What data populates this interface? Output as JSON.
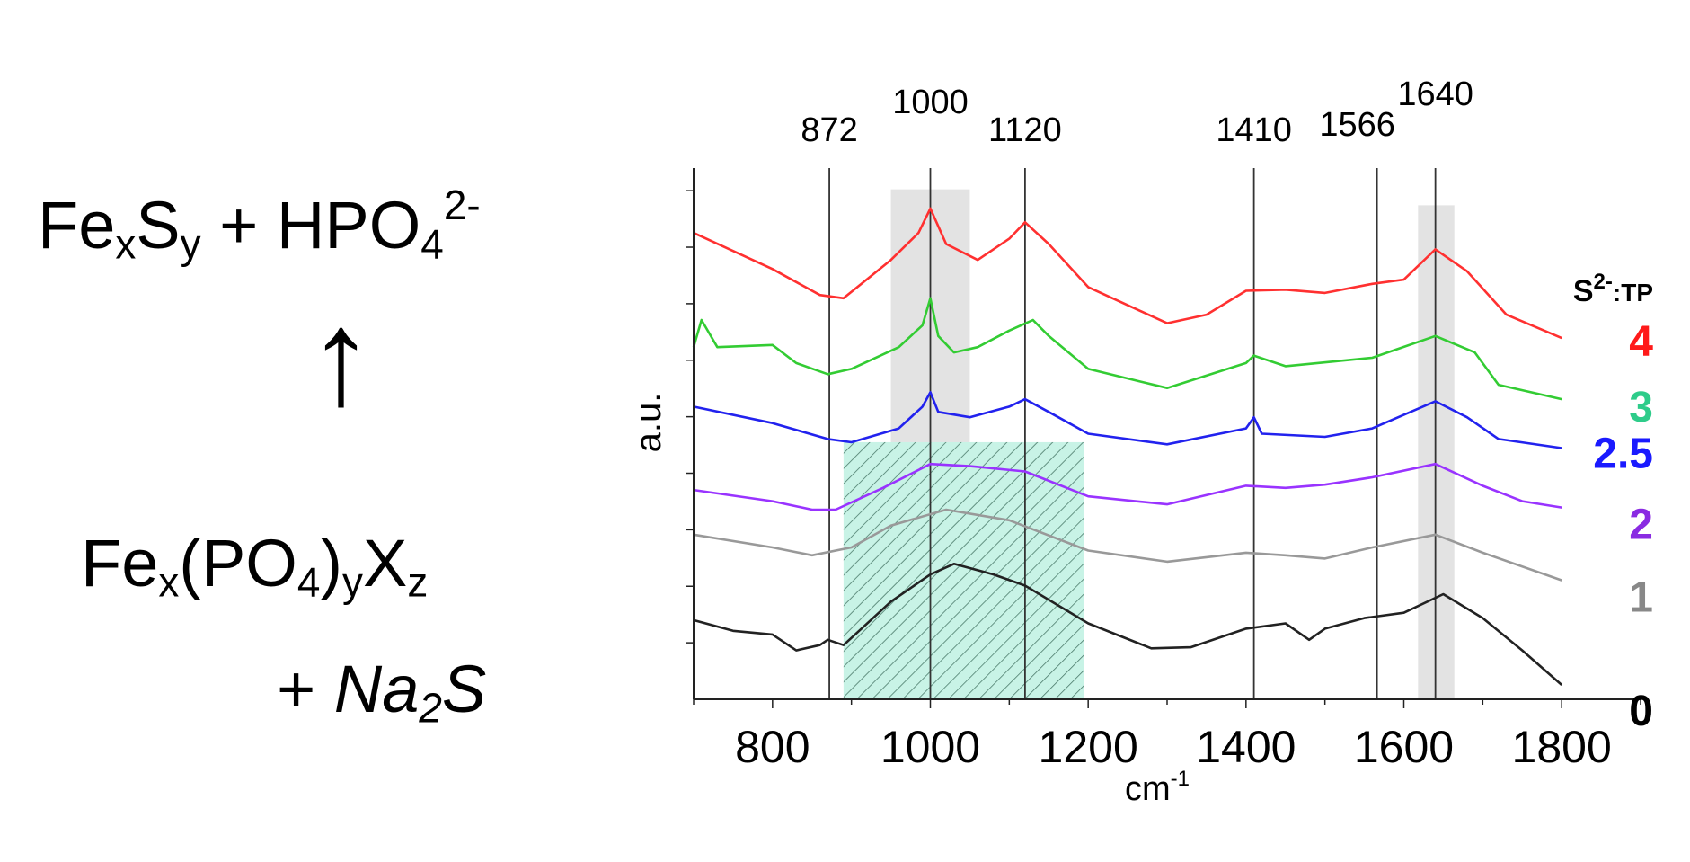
{
  "scheme": {
    "product": {
      "a": "Fe",
      "a_sub": "x",
      "b": "S",
      "b_sub": "y",
      "plus": " + HPO",
      "p_sub": "4",
      "p_sup": "2-"
    },
    "arrow": "↑",
    "reactant": {
      "a": "Fe",
      "a_sub": "x",
      "b": "(PO",
      "b_sub": "4",
      "c": ")",
      "c_sub": "y",
      "d": "X",
      "d_sub": "z"
    },
    "reagent": {
      "plus": "+ ",
      "a": "Na",
      "a_sub": "2",
      "b": "S"
    }
  },
  "chart_data": {
    "type": "line",
    "xlabel": "cm",
    "xlabel_sup": "-1",
    "ylabel": "a.u.",
    "xlim": [
      700,
      1900
    ],
    "ylim": [
      0,
      10
    ],
    "xticks": [
      "800",
      "1000",
      "1200",
      "1400",
      "1600",
      "1800"
    ],
    "grid": false,
    "legend_title": {
      "main": "S",
      "sup": "2-",
      "rest": ":TP"
    },
    "legend_placement": "right",
    "reference_lines": [
      {
        "x": 872,
        "label": "872"
      },
      {
        "x": 1000,
        "label": "1000"
      },
      {
        "x": 1120,
        "label": "1120"
      },
      {
        "x": 1410,
        "label": "1410"
      },
      {
        "x": 1566,
        "label": "1566"
      },
      {
        "x": 1640,
        "label": "1640"
      }
    ],
    "shaded_regions": [
      {
        "x": [
          950,
          1050
        ],
        "y": [
          4.84,
          9.6
        ],
        "style": "gray"
      },
      {
        "x": [
          1618,
          1664
        ],
        "y": [
          0,
          9.3
        ],
        "style": "gray"
      },
      {
        "x": [
          890,
          1195
        ],
        "y": [
          0,
          4.84
        ],
        "style": "teal-hatched"
      }
    ],
    "series": [
      {
        "name": "4",
        "color": "#ff3030",
        "label_color": "#ff1a1a",
        "x": [
          700,
          800,
          860,
          890,
          950,
          985,
          1000,
          1020,
          1060,
          1100,
          1120,
          1150,
          1200,
          1300,
          1350,
          1400,
          1450,
          1500,
          1560,
          1600,
          1640,
          1680,
          1730,
          1800
        ],
        "y": [
          8.78,
          8.1,
          7.61,
          7.55,
          8.27,
          8.78,
          9.24,
          8.57,
          8.27,
          8.67,
          8.98,
          8.57,
          7.76,
          7.08,
          7.24,
          7.69,
          7.71,
          7.65,
          7.82,
          7.9,
          8.47,
          8.06,
          7.24,
          6.8
        ]
      },
      {
        "name": "3",
        "color": "#33cc33",
        "label_color": "#2ecc8a",
        "x": [
          700,
          710,
          730,
          800,
          830,
          870,
          900,
          960,
          990,
          1000,
          1010,
          1030,
          1060,
          1100,
          1130,
          1150,
          1200,
          1300,
          1400,
          1410,
          1450,
          1560,
          1640,
          1690,
          1720,
          1800
        ],
        "y": [
          6.63,
          7.14,
          6.63,
          6.67,
          6.33,
          6.12,
          6.22,
          6.63,
          7.04,
          7.55,
          6.84,
          6.53,
          6.63,
          6.94,
          7.14,
          6.84,
          6.22,
          5.86,
          6.33,
          6.47,
          6.27,
          6.43,
          6.84,
          6.53,
          5.92,
          5.65
        ]
      },
      {
        "name": "2.5",
        "color": "#2222ee",
        "label_color": "#1a1aff",
        "x": [
          700,
          800,
          870,
          900,
          960,
          990,
          1000,
          1010,
          1050,
          1100,
          1120,
          1150,
          1200,
          1300,
          1400,
          1410,
          1420,
          1500,
          1560,
          1640,
          1680,
          1720,
          1800
        ],
        "y": [
          5.51,
          5.2,
          4.9,
          4.84,
          5.1,
          5.51,
          5.78,
          5.41,
          5.31,
          5.51,
          5.65,
          5.41,
          5.0,
          4.8,
          5.1,
          5.31,
          5.0,
          4.94,
          5.1,
          5.61,
          5.31,
          4.9,
          4.73
        ]
      },
      {
        "name": "2",
        "color": "#9933ff",
        "label_color": "#8a2be2",
        "x": [
          700,
          800,
          850,
          880,
          940,
          1000,
          1050,
          1120,
          1200,
          1300,
          1400,
          1450,
          1500,
          1560,
          1640,
          1700,
          1750,
          1800
        ],
        "y": [
          3.94,
          3.73,
          3.57,
          3.57,
          3.98,
          4.43,
          4.39,
          4.29,
          3.82,
          3.67,
          4.02,
          3.98,
          4.04,
          4.18,
          4.43,
          4.02,
          3.73,
          3.61
        ]
      },
      {
        "name": "1",
        "color": "#999999",
        "label_color": "#888888",
        "x": [
          700,
          800,
          850,
          900,
          950,
          1020,
          1100,
          1200,
          1300,
          1400,
          1450,
          1500,
          1560,
          1640,
          1700,
          1800
        ],
        "y": [
          3.1,
          2.86,
          2.71,
          2.86,
          3.27,
          3.57,
          3.37,
          2.8,
          2.59,
          2.76,
          2.71,
          2.65,
          2.86,
          3.1,
          2.76,
          2.24
        ]
      },
      {
        "name": "0",
        "color": "#222222",
        "label_color": "#000000",
        "x": [
          700,
          750,
          800,
          830,
          860,
          870,
          890,
          950,
          1000,
          1030,
          1080,
          1120,
          1200,
          1280,
          1330,
          1400,
          1450,
          1480,
          1500,
          1550,
          1600,
          1650,
          1700,
          1750,
          1800
        ],
        "y": [
          1.49,
          1.29,
          1.22,
          0.92,
          1.02,
          1.12,
          1.02,
          1.84,
          2.35,
          2.55,
          2.35,
          2.14,
          1.43,
          0.96,
          0.98,
          1.33,
          1.43,
          1.12,
          1.33,
          1.53,
          1.63,
          1.98,
          1.53,
          0.92,
          0.27
        ]
      }
    ]
  }
}
